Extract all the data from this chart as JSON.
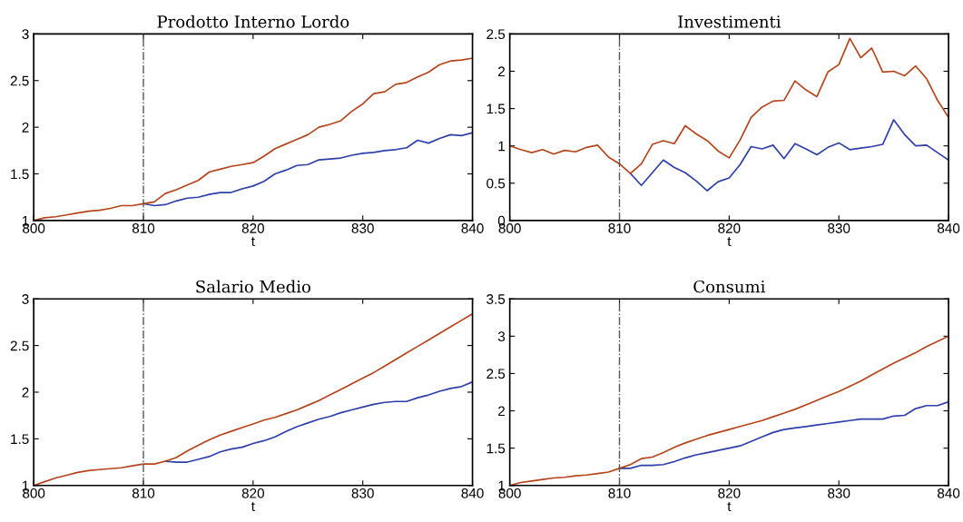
{
  "chart_data": [
    {
      "type": "line",
      "title": "Prodotto Interno Lordo",
      "xlabel": "t",
      "xlim": [
        800,
        840
      ],
      "xticks": [
        800,
        810,
        820,
        830,
        840
      ],
      "ylim": [
        1,
        3
      ],
      "yticks": [
        1,
        1.5,
        2,
        2.5,
        3
      ],
      "grid": false,
      "line_style": "solid",
      "ref_lines": [
        {
          "axis": "x",
          "value": 810,
          "color": "#555555",
          "line_style": "dashdot"
        }
      ],
      "series": [
        {
          "color": "#2d3fa8",
          "x": [
            810,
            811,
            812,
            813,
            814,
            815,
            816,
            817,
            818,
            819,
            820,
            821,
            822,
            823,
            824,
            825,
            826,
            827,
            828,
            829,
            830,
            831,
            832,
            833,
            834,
            835,
            836,
            837,
            838,
            839,
            840
          ],
          "values": [
            1.18,
            1.16,
            1.17,
            1.21,
            1.24,
            1.25,
            1.28,
            1.3,
            1.3,
            1.34,
            1.37,
            1.42,
            1.5,
            1.54,
            1.59,
            1.6,
            1.65,
            1.66,
            1.67,
            1.7,
            1.72,
            1.73,
            1.75,
            1.76,
            1.78,
            1.86,
            1.83,
            1.88,
            1.92,
            1.91,
            1.94
          ]
        },
        {
          "color": "#b5441a",
          "x": [
            800,
            801,
            802,
            803,
            804,
            805,
            806,
            807,
            808,
            809,
            810,
            811,
            812,
            813,
            814,
            815,
            816,
            817,
            818,
            819,
            820,
            821,
            822,
            823,
            824,
            825,
            826,
            827,
            828,
            829,
            830,
            831,
            832,
            833,
            834,
            835,
            836,
            837,
            838,
            839,
            840
          ],
          "values": [
            1.0,
            1.03,
            1.04,
            1.06,
            1.08,
            1.1,
            1.11,
            1.13,
            1.16,
            1.16,
            1.18,
            1.2,
            1.29,
            1.33,
            1.38,
            1.43,
            1.52,
            1.55,
            1.58,
            1.6,
            1.62,
            1.69,
            1.77,
            1.82,
            1.87,
            1.92,
            2.0,
            2.03,
            2.07,
            2.17,
            2.25,
            2.36,
            2.38,
            2.46,
            2.48,
            2.54,
            2.59,
            2.67,
            2.71,
            2.72,
            2.74
          ]
        }
      ]
    },
    {
      "type": "line",
      "title": "Investimenti",
      "xlabel": "t",
      "xlim": [
        800,
        840
      ],
      "xticks": [
        800,
        810,
        820,
        830,
        840
      ],
      "ylim": [
        0,
        2.5
      ],
      "yticks": [
        0,
        0.5,
        1,
        1.5,
        2,
        2.5
      ],
      "grid": false,
      "line_style": "solid",
      "ref_lines": [
        {
          "axis": "x",
          "value": 810,
          "color": "#555555",
          "line_style": "dashdot"
        }
      ],
      "series": [
        {
          "color": "#2d3fa8",
          "x": [
            811,
            812,
            813,
            814,
            815,
            816,
            817,
            818,
            819,
            820,
            821,
            822,
            823,
            824,
            825,
            826,
            827,
            828,
            829,
            830,
            831,
            832,
            833,
            834,
            835,
            836,
            837,
            838,
            839,
            840
          ],
          "values": [
            0.63,
            0.47,
            0.64,
            0.81,
            0.71,
            0.64,
            0.53,
            0.4,
            0.52,
            0.57,
            0.75,
            0.99,
            0.96,
            1.01,
            0.83,
            1.03,
            0.96,
            0.88,
            0.98,
            1.04,
            0.95,
            0.97,
            0.99,
            1.02,
            1.35,
            1.15,
            1.0,
            1.01,
            0.91,
            0.81
          ]
        },
        {
          "color": "#b5441a",
          "x": [
            800,
            801,
            802,
            803,
            804,
            805,
            806,
            807,
            808,
            809,
            810,
            811,
            812,
            813,
            814,
            815,
            816,
            817,
            818,
            819,
            820,
            821,
            822,
            823,
            824,
            825,
            826,
            827,
            828,
            829,
            830,
            831,
            832,
            833,
            834,
            835,
            836,
            837,
            838,
            839,
            840
          ],
          "values": [
            1.0,
            0.95,
            0.91,
            0.95,
            0.89,
            0.94,
            0.92,
            0.98,
            1.01,
            0.85,
            0.76,
            0.63,
            0.76,
            1.02,
            1.07,
            1.03,
            1.27,
            1.16,
            1.07,
            0.93,
            0.84,
            1.08,
            1.38,
            1.52,
            1.6,
            1.61,
            1.87,
            1.75,
            1.66,
            1.99,
            2.09,
            2.44,
            2.18,
            2.31,
            1.99,
            2.0,
            1.94,
            2.07,
            1.9,
            1.61,
            1.38
          ]
        }
      ]
    },
    {
      "type": "line",
      "title": "Salario Medio",
      "xlabel": "t",
      "xlim": [
        800,
        840
      ],
      "xticks": [
        800,
        810,
        820,
        830,
        840
      ],
      "ylim": [
        1,
        3
      ],
      "yticks": [
        1,
        1.5,
        2,
        2.5,
        3
      ],
      "grid": false,
      "line_style": "solid",
      "ref_lines": [
        {
          "axis": "x",
          "value": 810,
          "color": "#555555",
          "line_style": "dashdot"
        }
      ],
      "series": [
        {
          "color": "#2d3fa8",
          "x": [
            812,
            813,
            814,
            815,
            816,
            817,
            818,
            819,
            820,
            821,
            822,
            823,
            824,
            825,
            826,
            827,
            828,
            829,
            830,
            831,
            832,
            833,
            834,
            835,
            836,
            837,
            838,
            839,
            840
          ],
          "values": [
            1.26,
            1.25,
            1.25,
            1.28,
            1.31,
            1.36,
            1.39,
            1.41,
            1.45,
            1.48,
            1.52,
            1.58,
            1.63,
            1.67,
            1.71,
            1.74,
            1.78,
            1.81,
            1.84,
            1.87,
            1.89,
            1.9,
            1.9,
            1.94,
            1.97,
            2.01,
            2.04,
            2.06,
            2.11
          ]
        },
        {
          "color": "#b5441a",
          "x": [
            800,
            801,
            802,
            803,
            804,
            805,
            806,
            807,
            808,
            809,
            810,
            811,
            812,
            813,
            814,
            815,
            816,
            817,
            818,
            819,
            820,
            821,
            822,
            823,
            824,
            825,
            826,
            827,
            828,
            829,
            830,
            831,
            832,
            833,
            834,
            835,
            836,
            837,
            838,
            839,
            840
          ],
          "values": [
            1.0,
            1.04,
            1.08,
            1.11,
            1.14,
            1.16,
            1.17,
            1.18,
            1.19,
            1.21,
            1.23,
            1.23,
            1.26,
            1.3,
            1.37,
            1.43,
            1.49,
            1.54,
            1.58,
            1.62,
            1.66,
            1.7,
            1.73,
            1.77,
            1.81,
            1.86,
            1.91,
            1.97,
            2.03,
            2.09,
            2.15,
            2.21,
            2.28,
            2.35,
            2.42,
            2.49,
            2.56,
            2.63,
            2.7,
            2.77,
            2.84
          ]
        }
      ]
    },
    {
      "type": "line",
      "title": "Consumi",
      "xlabel": "t",
      "xlim": [
        800,
        840
      ],
      "xticks": [
        800,
        810,
        820,
        830,
        840
      ],
      "ylim": [
        1,
        3.5
      ],
      "yticks": [
        1,
        1.5,
        2,
        2.5,
        3,
        3.5
      ],
      "grid": false,
      "line_style": "solid",
      "ref_lines": [
        {
          "axis": "x",
          "value": 810,
          "color": "#555555",
          "line_style": "dashdot"
        }
      ],
      "series": [
        {
          "color": "#2d3fa8",
          "x": [
            810,
            811,
            812,
            813,
            814,
            815,
            816,
            817,
            818,
            819,
            820,
            821,
            822,
            823,
            824,
            825,
            826,
            827,
            828,
            829,
            830,
            831,
            832,
            833,
            834,
            835,
            836,
            837,
            838,
            839,
            840
          ],
          "values": [
            1.23,
            1.23,
            1.27,
            1.27,
            1.28,
            1.32,
            1.37,
            1.41,
            1.44,
            1.47,
            1.5,
            1.53,
            1.59,
            1.65,
            1.71,
            1.75,
            1.77,
            1.79,
            1.81,
            1.83,
            1.85,
            1.87,
            1.89,
            1.89,
            1.89,
            1.93,
            1.94,
            2.03,
            2.07,
            2.07,
            2.12
          ]
        },
        {
          "color": "#b5441a",
          "x": [
            800,
            801,
            802,
            803,
            804,
            805,
            806,
            807,
            808,
            809,
            810,
            811,
            812,
            813,
            814,
            815,
            816,
            817,
            818,
            819,
            820,
            821,
            822,
            823,
            824,
            825,
            826,
            827,
            828,
            829,
            830,
            831,
            832,
            833,
            834,
            835,
            836,
            837,
            838,
            839,
            840
          ],
          "values": [
            1.0,
            1.04,
            1.06,
            1.08,
            1.1,
            1.11,
            1.13,
            1.14,
            1.16,
            1.18,
            1.23,
            1.28,
            1.36,
            1.38,
            1.44,
            1.51,
            1.57,
            1.62,
            1.67,
            1.71,
            1.75,
            1.79,
            1.83,
            1.87,
            1.92,
            1.97,
            2.02,
            2.08,
            2.14,
            2.2,
            2.26,
            2.33,
            2.4,
            2.48,
            2.56,
            2.64,
            2.71,
            2.78,
            2.86,
            2.93,
            3.0
          ]
        }
      ]
    }
  ]
}
